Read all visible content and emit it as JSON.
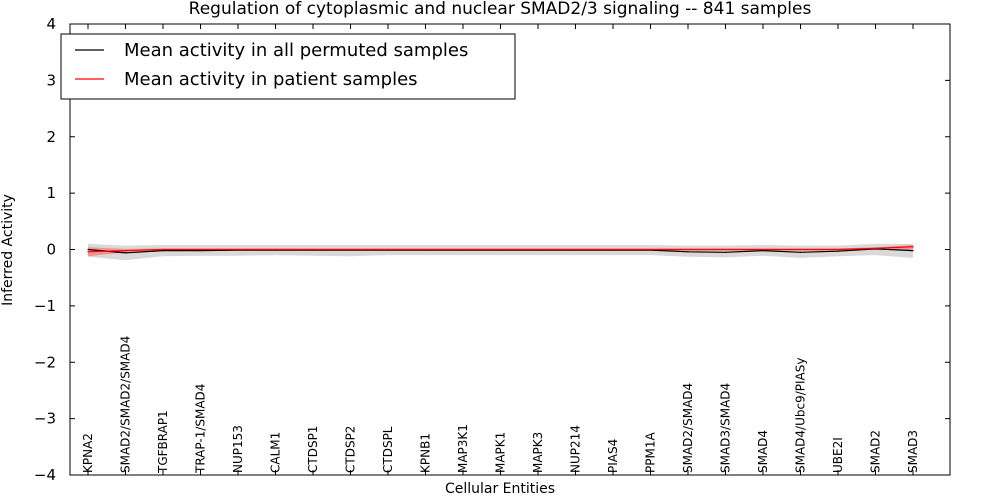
{
  "chart_data": {
    "type": "line",
    "title": "Regulation of cytoplasmic and nuclear SMAD2/3 signaling -- 841 samples",
    "xlabel": "Cellular Entities",
    "ylabel": "Inferred Activity",
    "ylim": [
      -4,
      4
    ],
    "yticks": [
      -4,
      -3,
      -2,
      -1,
      0,
      1,
      2,
      3,
      4
    ],
    "ytick_labels": [
      "−4",
      "−3",
      "−2",
      "−1",
      "0",
      "1",
      "2",
      "3",
      "4"
    ],
    "grid": false,
    "legend_position": "top-left",
    "categories": [
      "KPNA2",
      "SMAD2/SMAD2/SMAD4",
      "TGFBRAP1",
      "TRAP-1/SMAD4",
      "NUP153",
      "CALM1",
      "CTDSP1",
      "CTDSP2",
      "CTDSPL",
      "KPNB1",
      "MAP3K1",
      "MAPK1",
      "MAPK3",
      "NUP214",
      "PIAS4",
      "PPM1A",
      "SMAD2/SMAD4",
      "SMAD3/SMAD4",
      "SMAD4",
      "SMAD4/Ubc9/PIASy",
      "UBE2I",
      "SMAD2",
      "SMAD3"
    ],
    "series": [
      {
        "name": "Mean activity in all permuted samples",
        "color": "#000000",
        "values": [
          0.0,
          -0.06,
          -0.02,
          -0.02,
          -0.01,
          -0.01,
          -0.01,
          -0.01,
          -0.01,
          -0.01,
          -0.01,
          -0.01,
          -0.01,
          -0.01,
          -0.01,
          -0.01,
          -0.04,
          -0.05,
          -0.02,
          -0.05,
          -0.03,
          0.01,
          -0.02
        ],
        "band_lower": [
          -0.13,
          -0.19,
          -0.12,
          -0.11,
          -0.11,
          -0.1,
          -0.11,
          -0.12,
          -0.1,
          -0.1,
          -0.1,
          -0.1,
          -0.1,
          -0.1,
          -0.1,
          -0.1,
          -0.13,
          -0.14,
          -0.11,
          -0.15,
          -0.12,
          -0.1,
          -0.15
        ],
        "band_upper": [
          0.1,
          0.07,
          0.08,
          0.08,
          0.08,
          0.08,
          0.08,
          0.08,
          0.08,
          0.08,
          0.08,
          0.08,
          0.08,
          0.08,
          0.08,
          0.08,
          0.07,
          0.07,
          0.08,
          0.07,
          0.07,
          0.1,
          0.1
        ],
        "band_color": "#b3b3b3"
      },
      {
        "name": "Mean activity in patient samples",
        "color": "#ff0000",
        "values": [
          -0.04,
          -0.02,
          0.0,
          0.0,
          0.0,
          0.0,
          0.0,
          0.0,
          0.0,
          0.0,
          0.0,
          0.0,
          0.0,
          0.0,
          0.0,
          0.0,
          0.0,
          0.0,
          0.0,
          0.0,
          0.0,
          0.02,
          0.05
        ],
        "band_lower": [
          -0.12,
          -0.05,
          -0.02,
          -0.02,
          -0.02,
          -0.02,
          -0.02,
          -0.02,
          -0.02,
          -0.02,
          -0.02,
          -0.02,
          -0.02,
          -0.02,
          -0.02,
          -0.02,
          -0.02,
          -0.02,
          -0.02,
          -0.02,
          -0.02,
          0.0,
          0.0
        ],
        "band_upper": [
          0.04,
          0.01,
          0.02,
          0.02,
          0.02,
          0.02,
          0.02,
          0.02,
          0.02,
          0.02,
          0.02,
          0.02,
          0.02,
          0.02,
          0.02,
          0.02,
          0.02,
          0.02,
          0.02,
          0.02,
          0.02,
          0.04,
          0.08
        ],
        "band_color": "#ff6666"
      }
    ]
  }
}
